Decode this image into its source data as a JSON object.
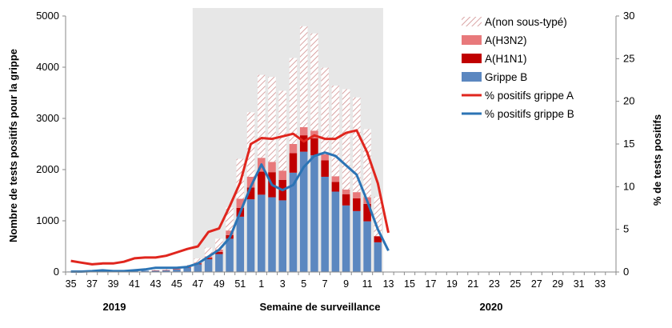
{
  "chart_data": {
    "type": "bar+line",
    "title": "",
    "xlabel": "Semaine de surveillance",
    "ylabel": "Nombre de tests positifs pour la grippe",
    "y2label": "% de tests positifs",
    "ylim": [
      0,
      5000
    ],
    "yticks": [
      "0",
      "1000",
      "2000",
      "3000",
      "4000",
      "5000"
    ],
    "y2lim": [
      0,
      30
    ],
    "y2ticks": [
      "0",
      "5",
      "10",
      "15",
      "20",
      "25",
      "30"
    ],
    "year_labels": [
      "2019",
      "2020"
    ],
    "shaded_period": {
      "from_week": "47",
      "to_week": "12"
    },
    "weeks": [
      "35",
      "36",
      "37",
      "38",
      "39",
      "40",
      "41",
      "42",
      "43",
      "44",
      "45",
      "46",
      "47",
      "48",
      "49",
      "50",
      "51",
      "52",
      "1",
      "2",
      "3",
      "4",
      "5",
      "6",
      "7",
      "8",
      "9",
      "10",
      "11",
      "12",
      "13",
      "14",
      "15",
      "16",
      "17",
      "18",
      "19",
      "20",
      "21",
      "22",
      "23",
      "24",
      "25",
      "26",
      "27",
      "28",
      "29",
      "30",
      "31",
      "32",
      "33",
      "34"
    ],
    "tick_labels": [
      "35",
      "37",
      "39",
      "41",
      "43",
      "45",
      "47",
      "49",
      "51",
      "1",
      "3",
      "5",
      "7",
      "9",
      "11",
      "13",
      "15",
      "17",
      "19",
      "21",
      "23",
      "25",
      "27",
      "29",
      "31",
      "33"
    ],
    "stack_series": [
      {
        "name": "Grippe B",
        "color": "#5b87c0",
        "values": [
          10,
          10,
          15,
          15,
          10,
          15,
          20,
          25,
          30,
          35,
          50,
          80,
          150,
          250,
          350,
          650,
          1080,
          1420,
          1510,
          1460,
          1400,
          1940,
          2350,
          2280,
          1860,
          1570,
          1300,
          1190,
          990,
          580,
          0,
          0,
          0,
          0,
          0,
          0,
          0,
          0,
          0,
          0,
          0,
          0,
          0,
          0,
          0,
          0,
          0,
          0,
          0,
          0,
          0,
          0
        ]
      },
      {
        "name": "A(H1N1)",
        "color": "#c00000",
        "values": [
          0,
          0,
          0,
          0,
          0,
          0,
          0,
          0,
          2,
          2,
          4,
          8,
          15,
          25,
          40,
          70,
          170,
          230,
          450,
          490,
          400,
          380,
          320,
          330,
          320,
          190,
          220,
          250,
          340,
          120,
          0,
          0,
          0,
          0,
          0,
          0,
          0,
          0,
          0,
          0,
          0,
          0,
          0,
          0,
          0,
          0,
          0,
          0,
          0,
          0,
          0,
          0
        ]
      },
      {
        "name": "A(H3N2)",
        "color": "#e8797b",
        "values": [
          0,
          0,
          0,
          0,
          0,
          0,
          0,
          0,
          2,
          3,
          6,
          10,
          20,
          30,
          50,
          90,
          180,
          210,
          270,
          200,
          180,
          180,
          160,
          150,
          120,
          110,
          90,
          120,
          130,
          0,
          0,
          0,
          0,
          0,
          0,
          0,
          0,
          0,
          0,
          0,
          0,
          0,
          0,
          0,
          0,
          0,
          0,
          0,
          0,
          0,
          0,
          0
        ]
      },
      {
        "name": "A(non sous-typé)",
        "color": "#d9a7a7",
        "pattern": "hatched",
        "values": [
          0,
          0,
          0,
          0,
          0,
          0,
          0,
          0,
          10,
          15,
          30,
          40,
          80,
          170,
          210,
          450,
          780,
          1260,
          1620,
          1660,
          1560,
          1680,
          1970,
          1900,
          1690,
          1770,
          1960,
          1850,
          1330,
          770,
          0,
          0,
          0,
          0,
          0,
          0,
          0,
          0,
          0,
          0,
          0,
          0,
          0,
          0,
          0,
          0,
          0,
          0,
          0,
          0,
          0,
          0
        ]
      }
    ],
    "line_series": [
      {
        "name": "% positifs grippe A",
        "color": "#e0261e",
        "values": [
          1.3,
          1.1,
          0.9,
          1.0,
          1.0,
          1.2,
          1.6,
          1.7,
          1.7,
          1.9,
          2.3,
          2.7,
          3.0,
          4.7,
          5.1,
          7.7,
          10.5,
          15.0,
          15.7,
          15.6,
          15.9,
          16.2,
          15.3,
          16.0,
          15.6,
          15.6,
          16.3,
          16.6,
          14.0,
          10.4,
          4.6,
          null,
          null,
          null,
          null,
          null,
          null,
          null,
          null,
          null,
          null,
          null,
          null,
          null,
          null,
          null,
          null,
          null,
          null,
          null,
          null,
          null
        ]
      },
      {
        "name": "% positifs grippe B",
        "color": "#2c74b5",
        "values": [
          0.05,
          0.05,
          0.1,
          0.2,
          0.1,
          0.1,
          0.2,
          0.3,
          0.5,
          0.5,
          0.5,
          0.6,
          1.0,
          1.8,
          2.6,
          4.0,
          7.0,
          10.0,
          12.6,
          10.2,
          9.6,
          10.2,
          12.3,
          13.6,
          14.0,
          13.6,
          12.5,
          11.4,
          8.3,
          5.0,
          2.5,
          null,
          null,
          null,
          null,
          null,
          null,
          null,
          null,
          null,
          null,
          null,
          null,
          null,
          null,
          null,
          null,
          null,
          null,
          null,
          null,
          null
        ]
      }
    ],
    "legend": {
      "position": "top-right",
      "items": [
        "A(non sous-typé)",
        "A(H3N2)",
        "A(H1N1)",
        "Grippe B",
        "% positifs grippe A",
        "% positifs grippe B"
      ]
    },
    "grid": false
  }
}
